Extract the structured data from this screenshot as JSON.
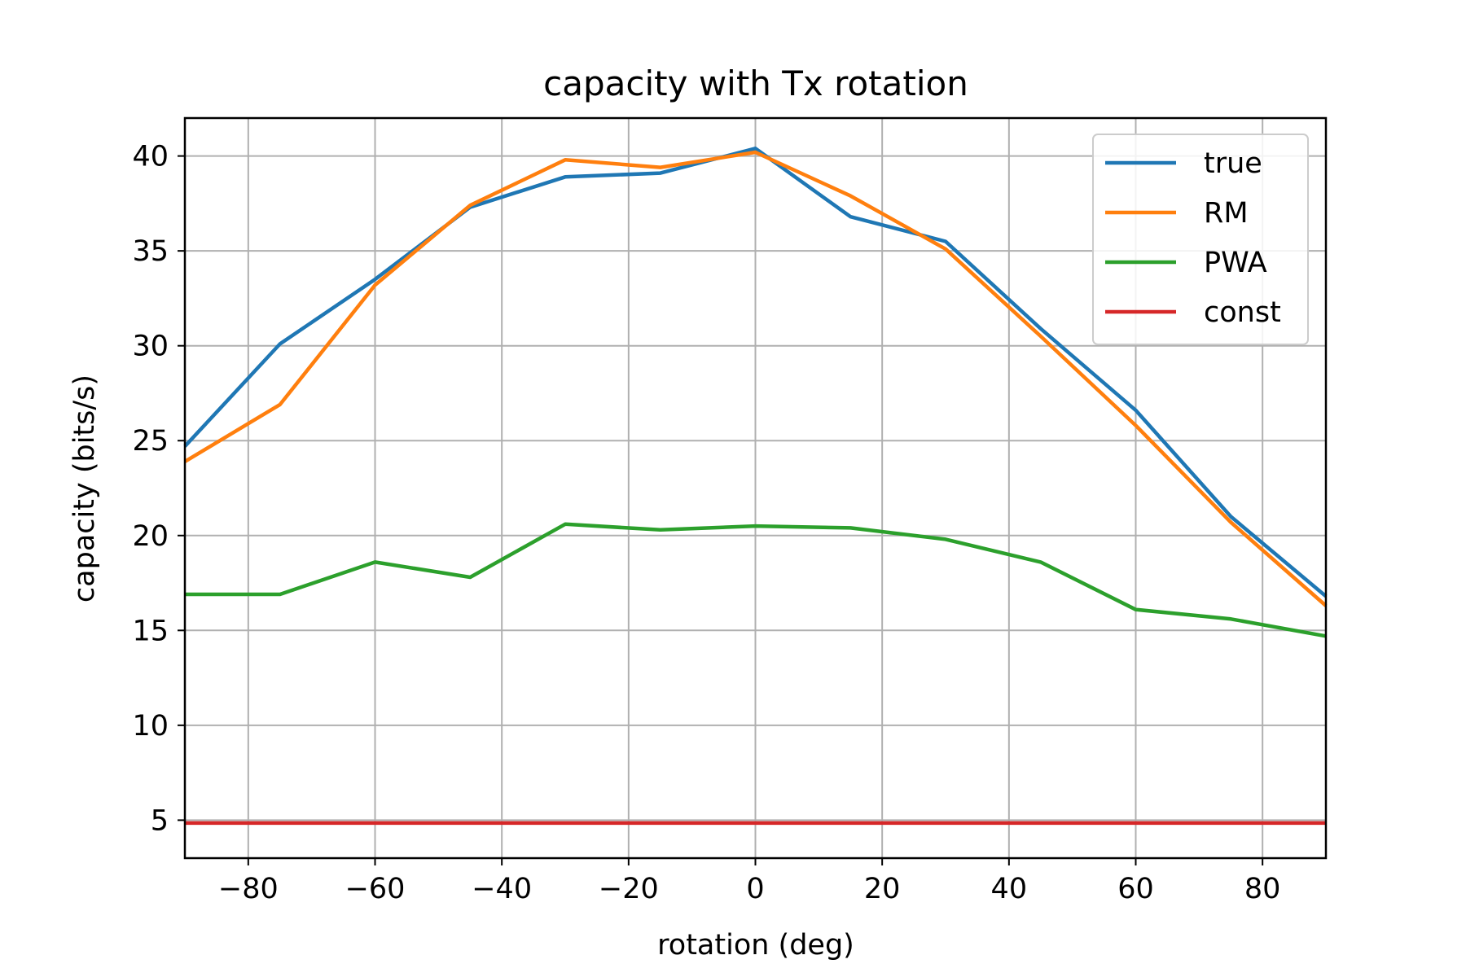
{
  "chart_data": {
    "type": "line",
    "title": "capacity with Tx rotation",
    "xlabel": "rotation (deg)",
    "ylabel": "capacity (bits/s)",
    "xlim": [
      -90,
      90
    ],
    "ylim": [
      3,
      42
    ],
    "xticks": [
      -80,
      -60,
      -40,
      -20,
      0,
      20,
      40,
      60,
      80
    ],
    "xtick_labels": [
      "−80",
      "−60",
      "−40",
      "−20",
      "0",
      "20",
      "40",
      "60",
      "80"
    ],
    "yticks": [
      5,
      10,
      15,
      20,
      25,
      30,
      35,
      40
    ],
    "ytick_labels": [
      "5",
      "10",
      "15",
      "20",
      "25",
      "30",
      "35",
      "40"
    ],
    "grid": true,
    "legend_position": "upper right",
    "x": [
      -90,
      -75,
      -60,
      -45,
      -30,
      -15,
      0,
      15,
      30,
      45,
      60,
      75,
      90
    ],
    "series": [
      {
        "name": "true",
        "color": "#1f77b4",
        "values": [
          24.7,
          30.1,
          33.5,
          37.3,
          38.9,
          39.1,
          40.4,
          36.8,
          35.5,
          30.9,
          26.6,
          21.0,
          16.8
        ]
      },
      {
        "name": "RM",
        "color": "#ff7f0e",
        "values": [
          23.9,
          26.9,
          33.2,
          37.4,
          39.8,
          39.4,
          40.2,
          37.9,
          35.1,
          30.5,
          25.8,
          20.7,
          16.3
        ]
      },
      {
        "name": "PWA",
        "color": "#2ca02c",
        "values": [
          16.9,
          16.9,
          18.6,
          17.8,
          20.6,
          20.3,
          20.5,
          20.4,
          19.8,
          18.6,
          16.1,
          15.6,
          14.7
        ]
      },
      {
        "name": "const",
        "color": "#d62728",
        "values": [
          4.85,
          4.85,
          4.85,
          4.85,
          4.85,
          4.85,
          4.85,
          4.85,
          4.85,
          4.85,
          4.85,
          4.85,
          4.85
        ]
      }
    ]
  }
}
